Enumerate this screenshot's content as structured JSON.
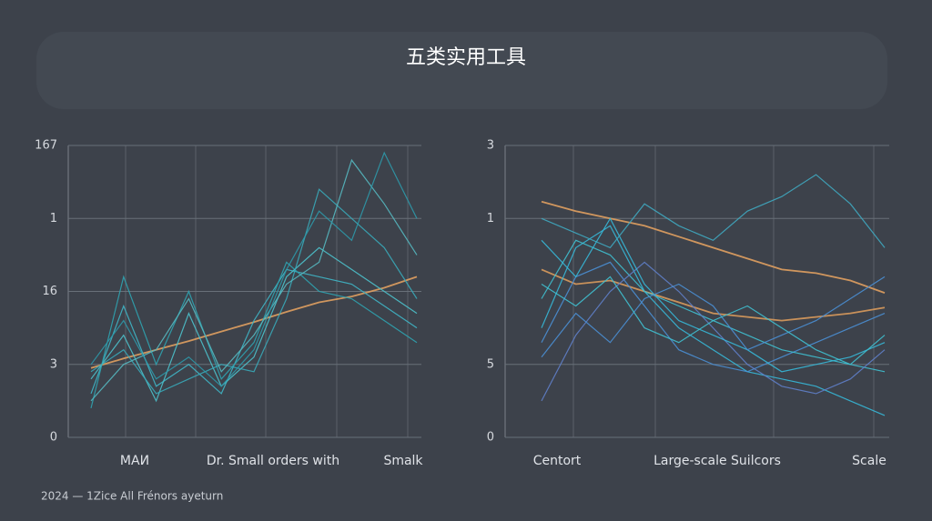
{
  "title": "五类实用工具",
  "footer": "2024 — 1Zice All Frénors ayeturn",
  "chart_data": [
    {
      "type": "line",
      "x": [
        0,
        1,
        2,
        3,
        4,
        5,
        6,
        7,
        8,
        9,
        10
      ],
      "xlim": [
        0,
        10
      ],
      "ylim": [
        0,
        4
      ],
      "yticks": [
        0,
        {
          "value": 1,
          "label": "3"
        },
        {
          "value": 2,
          "label": "16"
        },
        {
          "value": 3,
          "label": "1"
        },
        {
          "value": 4,
          "label": "167"
        }
      ],
      "x_labels": [
        "MAИ",
        "Dr. Small orders with",
        "Smalk"
      ],
      "grid": true,
      "series": [
        {
          "color": "#e0a060",
          "values": [
            0.95,
            1.08,
            1.2,
            1.32,
            1.45,
            1.58,
            1.72,
            1.85,
            1.93,
            2.05,
            2.2
          ]
        },
        {
          "color": "#3fb6c6",
          "values": [
            0.6,
            1.8,
            0.7,
            1.0,
            0.6,
            1.6,
            2.3,
            2.2,
            2.1,
            1.8,
            1.5
          ]
        },
        {
          "color": "#2fa3b0",
          "values": [
            0.4,
            2.2,
            1.0,
            2.0,
            0.8,
            1.3,
            2.4,
            2.0,
            1.9,
            1.6,
            1.3
          ]
        },
        {
          "color": "#4cc2cc",
          "values": [
            0.8,
            1.4,
            0.5,
            1.7,
            0.7,
            1.1,
            2.2,
            2.6,
            2.3,
            2.0,
            1.7
          ]
        },
        {
          "color": "#38a9b8",
          "values": [
            0.9,
            1.2,
            0.6,
            0.8,
            1.0,
            0.9,
            1.9,
            3.4,
            3.0,
            2.6,
            1.9
          ]
        },
        {
          "color": "#55b8c0",
          "values": [
            0.5,
            1.0,
            1.2,
            1.9,
            0.9,
            1.4,
            2.1,
            2.4,
            3.8,
            3.2,
            2.5
          ]
        },
        {
          "color": "#2e98a8",
          "values": [
            1.0,
            1.6,
            0.8,
            1.1,
            0.7,
            1.2,
            2.3,
            3.1,
            2.7,
            3.9,
            3.0
          ]
        }
      ]
    },
    {
      "type": "line",
      "x": [
        0,
        1,
        2,
        3,
        4,
        5,
        6,
        7,
        8,
        9,
        10
      ],
      "xlim": [
        0,
        10
      ],
      "ylim": [
        0,
        4
      ],
      "yticks": [
        0,
        {
          "value": 1,
          "label": "5"
        },
        {
          "value": 3,
          "label": "1"
        },
        {
          "value": 4,
          "label": "3"
        }
      ],
      "x_labels": [
        "Centort",
        "Large-scale Suilcors",
        "Scale"
      ],
      "grid": true,
      "series": [
        {
          "color": "#e0a060",
          "values": [
            3.23,
            3.1,
            3.0,
            2.9,
            2.75,
            2.6,
            2.45,
            2.3,
            2.25,
            2.15,
            1.98
          ]
        },
        {
          "color": "#d89a5c",
          "values": [
            2.3,
            2.1,
            2.15,
            2.0,
            1.85,
            1.7,
            1.65,
            1.6,
            1.65,
            1.7,
            1.78
          ]
        },
        {
          "color": "#36b8d8",
          "values": [
            1.5,
            2.6,
            2.9,
            2.0,
            1.5,
            1.2,
            0.9,
            0.8,
            0.7,
            0.5,
            0.3
          ]
        },
        {
          "color": "#4a8fd4",
          "values": [
            1.3,
            2.2,
            2.4,
            1.8,
            1.2,
            1.0,
            0.9,
            1.1,
            1.3,
            1.5,
            1.7
          ]
        },
        {
          "color": "#3fc0d0",
          "values": [
            1.9,
            2.7,
            2.5,
            2.0,
            1.8,
            1.6,
            1.4,
            1.2,
            1.1,
            1.0,
            0.9
          ]
        },
        {
          "color": "#5f7fc9",
          "values": [
            0.5,
            1.4,
            2.0,
            2.4,
            2.0,
            1.5,
            1.0,
            0.7,
            0.6,
            0.8,
            1.2
          ]
        },
        {
          "color": "#36b8d8",
          "values": [
            2.7,
            2.2,
            3.0,
            2.1,
            1.6,
            1.4,
            1.2,
            0.9,
            1.0,
            1.1,
            1.3
          ]
        },
        {
          "color": "#4a8fd4",
          "values": [
            1.1,
            1.7,
            1.3,
            1.9,
            2.1,
            1.8,
            1.2,
            1.4,
            1.6,
            1.9,
            2.2
          ]
        },
        {
          "color": "#3fc0d0",
          "values": [
            2.1,
            1.8,
            2.2,
            1.5,
            1.3,
            1.6,
            1.8,
            1.5,
            1.2,
            1.0,
            1.4
          ]
        },
        {
          "color": "#3fa8c0",
          "values": [
            3.0,
            2.8,
            2.6,
            3.2,
            2.9,
            2.7,
            3.1,
            3.3,
            3.6,
            3.2,
            2.6
          ]
        }
      ]
    }
  ]
}
